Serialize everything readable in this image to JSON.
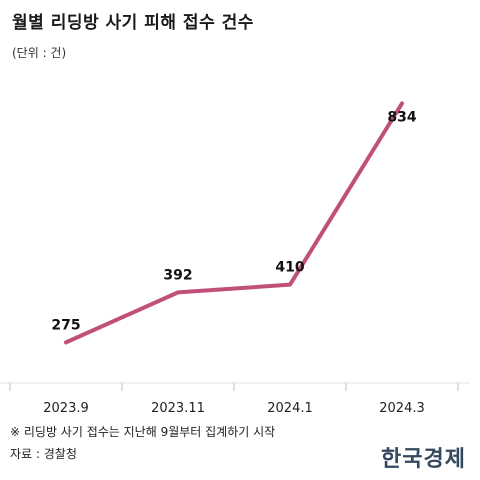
{
  "chart_data": {
    "type": "line",
    "title": "월별 리딩방 사기 피해 접수 건수",
    "unit_note": "(단위 : 건)",
    "x": [
      "2023.9",
      "2023.11",
      "2024.1",
      "2024.3"
    ],
    "series": [
      {
        "values": [
          275,
          392,
          410,
          834
        ]
      }
    ],
    "ylim": [
      180,
      870
    ],
    "grid": false,
    "line_color": "#c0507a"
  },
  "footer": {
    "note": "※ 리딩방 사기 접수는 지난해 9월부터 집계하기 시작",
    "source": "자료 : 경찰청",
    "brand": "한국경제"
  }
}
